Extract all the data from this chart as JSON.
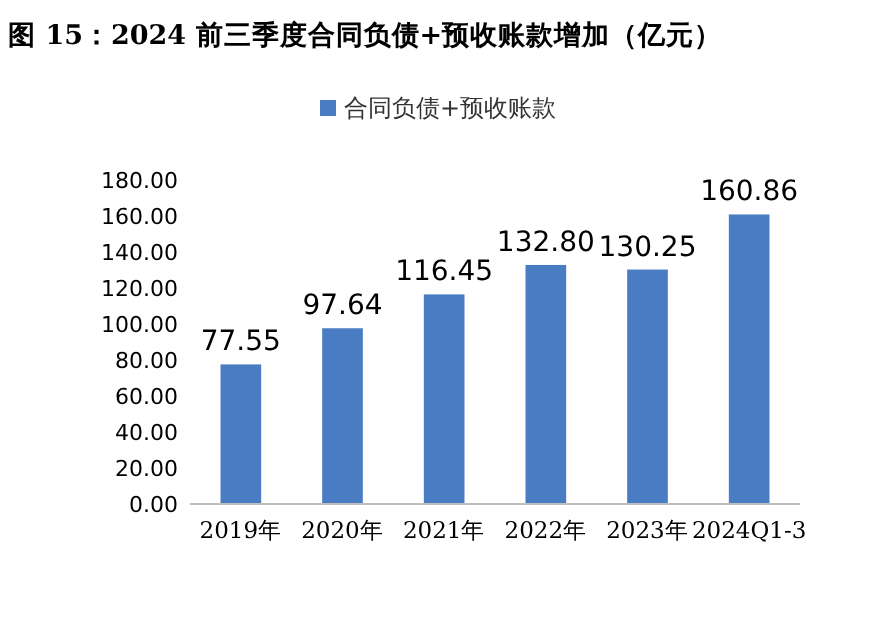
{
  "chart_data": {
    "type": "bar",
    "title": "图 15：2024 前三季度合同负债+预收账款增加（亿元）",
    "categories": [
      "2019年",
      "2020年",
      "2021年",
      "2022年",
      "2023年",
      "2024Q1-3"
    ],
    "series": [
      {
        "name": "合同负债+预收账款",
        "color": "#4a7cc4",
        "values": [
          77.55,
          97.64,
          116.45,
          132.8,
          130.25,
          160.86
        ]
      }
    ],
    "ylim": [
      0,
      180
    ],
    "yticks": [
      {
        "value": 0,
        "label": "0.00"
      },
      {
        "value": 20,
        "label": "20.00"
      },
      {
        "value": 40,
        "label": "40.00"
      },
      {
        "value": 60,
        "label": "60.00"
      },
      {
        "value": 80,
        "label": "80.00"
      },
      {
        "value": 100,
        "label": "100.00"
      },
      {
        "value": 120,
        "label": "120.00"
      },
      {
        "value": 140,
        "label": "140.00"
      },
      {
        "value": 160,
        "label": "160.00"
      },
      {
        "value": 180,
        "label": "180.00"
      }
    ],
    "value_labels": [
      "77.55",
      "97.64",
      "116.45",
      "132.80",
      "130.25",
      "160.86"
    ],
    "legend": "top",
    "grid": false
  }
}
